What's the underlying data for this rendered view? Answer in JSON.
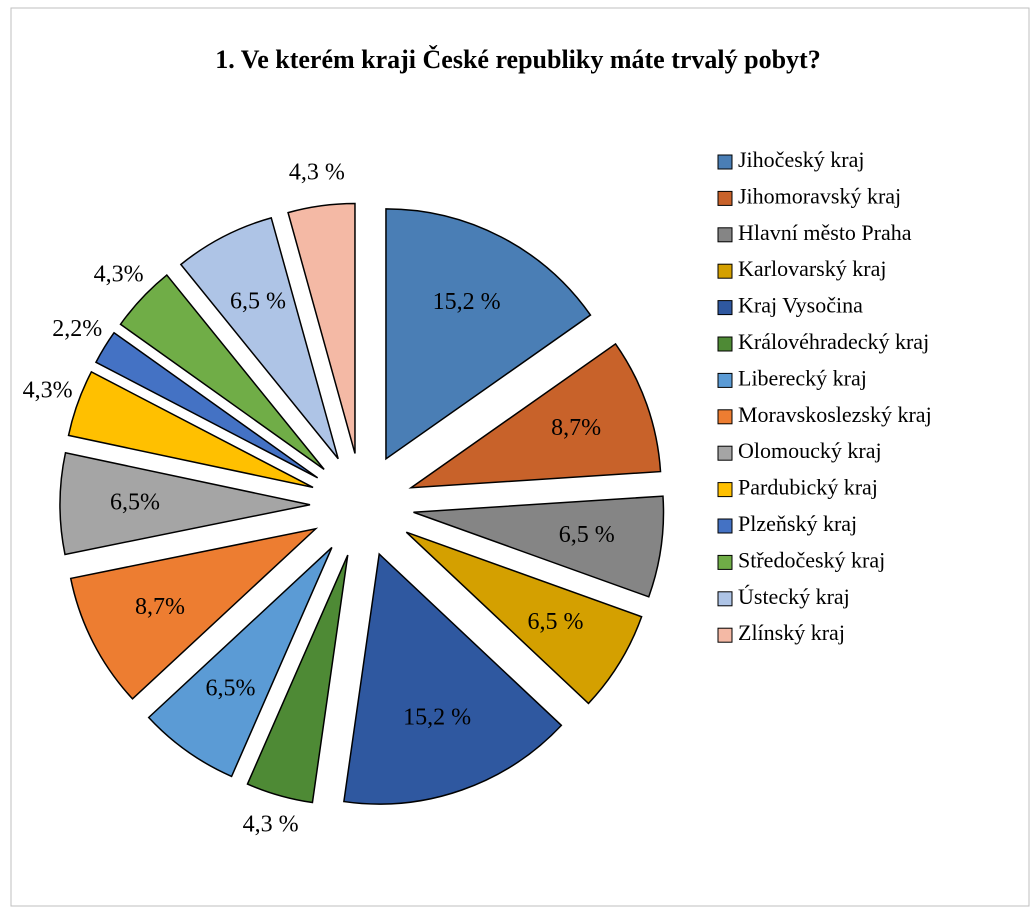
{
  "chart_data": {
    "type": "pie",
    "title": "1. Ve kterém kraji České republiky máte trvalý pobyt?",
    "categories": [
      "Jihočeský kraj",
      "Jihomoravský kraj",
      "Hlavní město Praha",
      "Karlovarský kraj",
      "Kraj Vysočina",
      "Královéhradecký kraj",
      "Liberecký kraj",
      "Moravskoslezský kraj",
      "Olomoucký kraj",
      "Pardubický kraj",
      "Plzeňský kraj",
      "Středočeský kraj",
      "Ústecký kraj",
      "Zlínský kraj"
    ],
    "values": [
      15.2,
      8.7,
      6.5,
      6.5,
      15.2,
      4.3,
      6.5,
      8.7,
      6.5,
      4.3,
      2.2,
      4.3,
      6.5,
      4.3
    ],
    "value_labels": [
      "15,2 %",
      "8,7%",
      "6,5 %",
      "6,5 %",
      "15,2 %",
      "4,3 %",
      "6,5%",
      "8,7%",
      "6,5%",
      "4,3%",
      "2,2%",
      "4,3%",
      "6,5 %",
      "4,3 %"
    ],
    "colors": [
      "#4a7eb5",
      "#c8622a",
      "#858585",
      "#d4a000",
      "#2f58a0",
      "#4e8a35",
      "#5b9bd5",
      "#ed7d31",
      "#a5a5a5",
      "#ffc000",
      "#4472c4",
      "#70ad47",
      "#aec4e6",
      "#f4b9a5"
    ],
    "legend": "right"
  }
}
